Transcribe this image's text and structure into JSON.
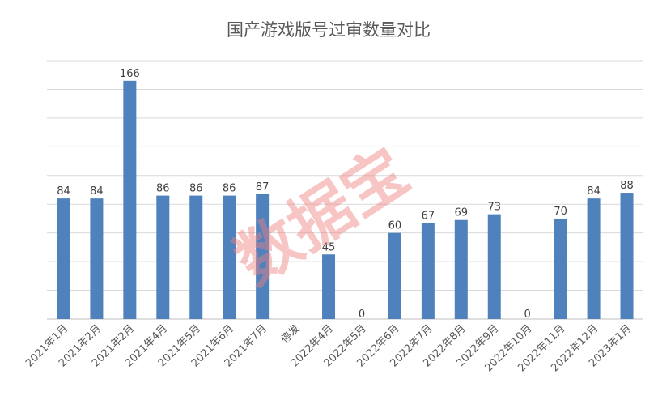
{
  "chart_data": {
    "type": "bar",
    "title": "国产游戏版号过审数量对比",
    "xlabel": "",
    "ylabel": "",
    "ylim": [
      0,
      180
    ],
    "grid": true,
    "legend": "none",
    "categories": [
      "2021年1月",
      "2021年2月",
      "2021年2月",
      "2021年4月",
      "2021年5月",
      "2021年6月",
      "2021年7月",
      "停发",
      "2022年4月",
      "2022年5月",
      "2022年6月",
      "2022年7月",
      "2022年8月",
      "2022年9月",
      "2022年10月",
      "2022年11月",
      "2022年12月",
      "2023年1月"
    ],
    "values": [
      84,
      84,
      166,
      86,
      86,
      86,
      87,
      null,
      45,
      0,
      60,
      67,
      69,
      73,
      0,
      70,
      84,
      88
    ],
    "data_labels": [
      "84",
      "84",
      "166",
      "86",
      "86",
      "86",
      "87",
      "",
      "45",
      "0",
      "60",
      "67",
      "69",
      "73",
      "0",
      "70",
      "84",
      "88"
    ],
    "bar_color": "#4f81bd",
    "grid_color": "#d9d9d9"
  },
  "watermark": "数据宝"
}
